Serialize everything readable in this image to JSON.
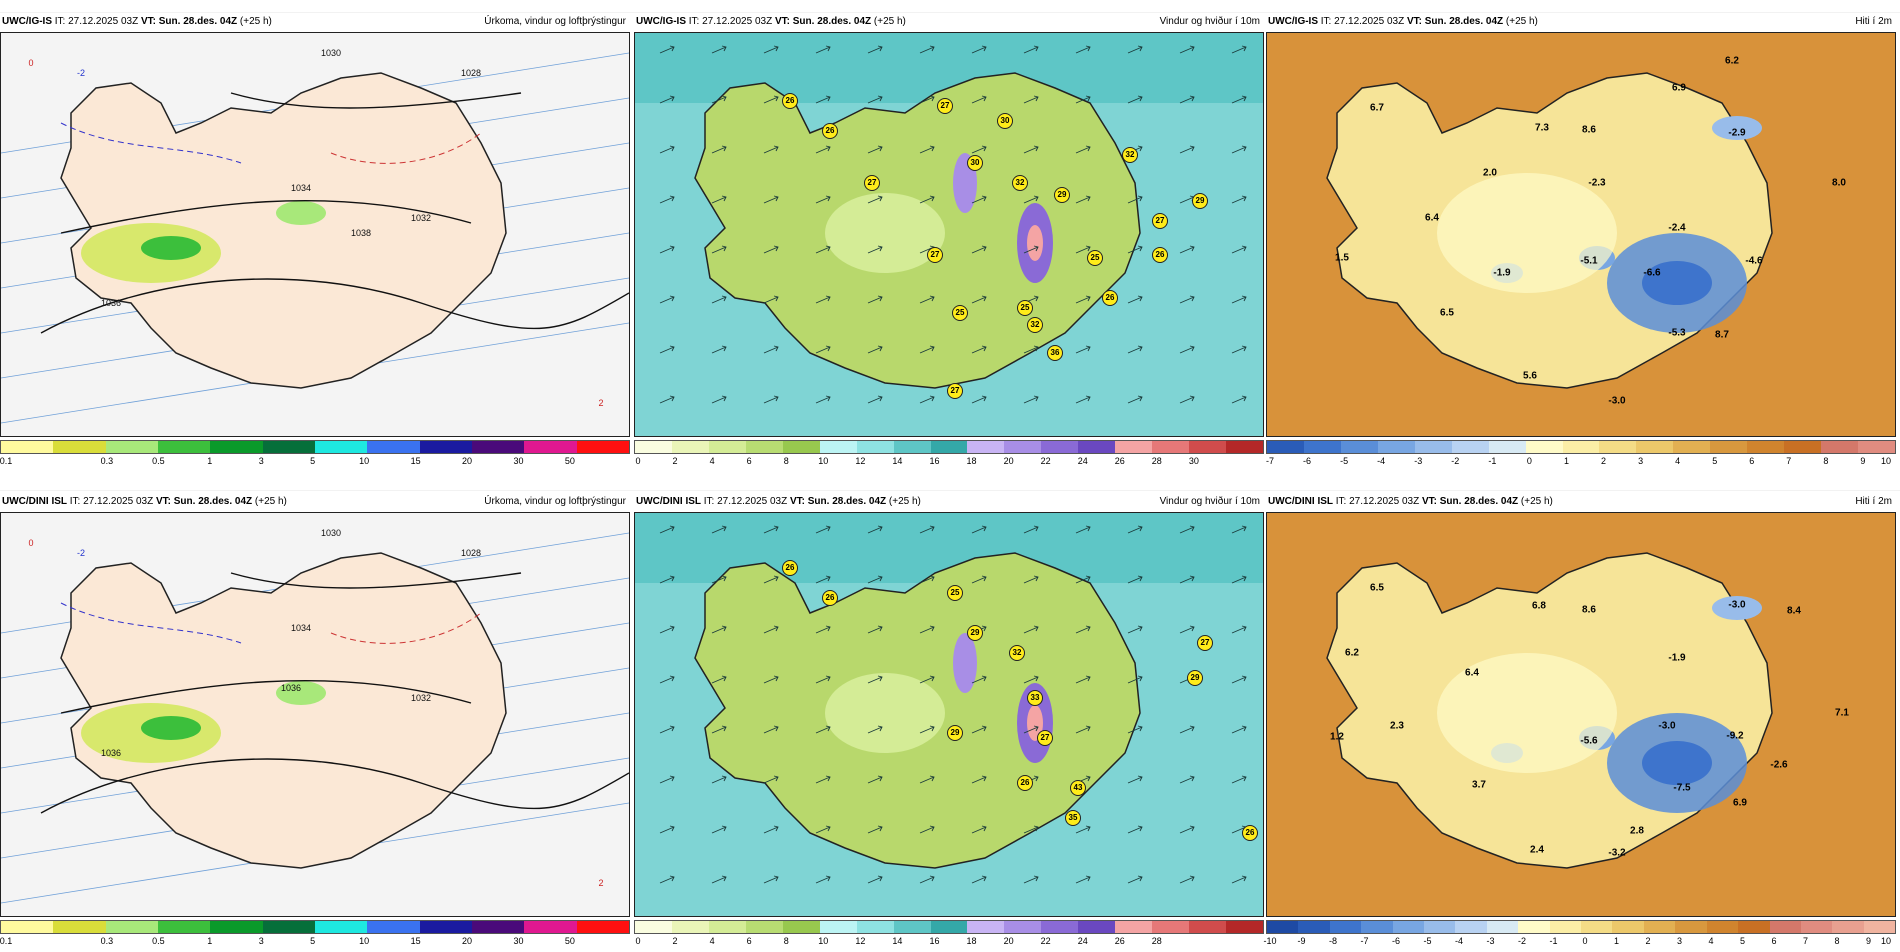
{
  "panels": [
    {
      "id": "igis-precip",
      "model": "UWC/IG-IS",
      "it_label": "IT:",
      "it_value": "27.12.2025 03Z",
      "vt_label": "VT:",
      "vt_value": "Sun. 28.des. 04Z",
      "lead": "(+25 h)",
      "title": "Úrkoma, vindur og loftþrýstingur",
      "legend": {
        "colors": [
          "#fffa9e",
          "#d9dd3a",
          "#a8e87a",
          "#3cbf3c",
          "#0a9a2a",
          "#066f3a",
          "#1ee8e0",
          "#3a72f0",
          "#1a1aa0",
          "#4a0a7a",
          "#e01890",
          "#ff1010"
        ],
        "ticks": [
          "0.1",
          "0.3",
          "0.5",
          "1",
          "3",
          "5",
          "10",
          "15",
          "20",
          "30",
          "50"
        ]
      },
      "labels": [
        "1030",
        "1032",
        "1034",
        "1036",
        "1028",
        "1038",
        "-2",
        "0",
        "2"
      ]
    },
    {
      "id": "igis-wind",
      "model": "UWC/IG-IS",
      "it_label": "IT:",
      "it_value": "27.12.2025 03Z",
      "vt_label": "VT:",
      "vt_value": "Sun. 28.des. 04Z",
      "lead": "(+25 h)",
      "title": "Vindur og hviður í 10m",
      "legend": {
        "colors": [
          "#fafde0",
          "#eaf5b8",
          "#d4ec96",
          "#b8dc72",
          "#98c84e",
          "#bcf4f4",
          "#8ee2e2",
          "#5ec6c6",
          "#34a8a8",
          "#c8b4f4",
          "#a88ee6",
          "#8a6ad6",
          "#6a48c0",
          "#f4a4a4",
          "#e67878",
          "#d04c4c",
          "#b42828"
        ],
        "ticks": [
          "0",
          "2",
          "4",
          "6",
          "8",
          "10",
          "12",
          "14",
          "16",
          "18",
          "20",
          "22",
          "24",
          "26",
          "28",
          "30"
        ]
      },
      "gusts": [
        "26",
        "26",
        "27",
        "30",
        "30",
        "32",
        "27",
        "29",
        "32",
        "27",
        "26",
        "27",
        "29",
        "25",
        "26",
        "25",
        "32",
        "36",
        "27",
        "25"
      ]
    },
    {
      "id": "igis-temp",
      "model": "UWC/IG-IS",
      "it_label": "IT:",
      "it_value": "27.12.2025 03Z",
      "vt_label": "VT:",
      "vt_value": "Sun. 28.des. 04Z",
      "lead": "(+25 h)",
      "title": "Hiti í 2m",
      "legend": {
        "colors": [
          "#2a5cb8",
          "#3e74cc",
          "#5a8ed8",
          "#78a6e2",
          "#98bcea",
          "#b8d2f2",
          "#d8eaf4",
          "#fffbc8",
          "#fbeea6",
          "#f4dc86",
          "#ecc86a",
          "#e2b052",
          "#d8983e",
          "#d0842e",
          "#c87024",
          "#d4786a",
          "#e08c80"
        ],
        "ticks": [
          "-7",
          "-6",
          "-5",
          "-4",
          "-3",
          "-2",
          "-1",
          "0",
          "1",
          "2",
          "3",
          "4",
          "5",
          "6",
          "7",
          "8",
          "9",
          "10"
        ]
      },
      "labels": [
        "6.7",
        "7.3",
        "8.6",
        "6.9",
        "6.2",
        "-2.9",
        "2.0",
        "-2.3",
        "8.0",
        "6.4",
        "-2.4",
        "1.5",
        "-1.9",
        "-5.1",
        "-6.6",
        "-4.6",
        "6.5",
        "-5.3",
        "8.7",
        "5.6",
        "-3.0"
      ]
    },
    {
      "id": "dini-precip",
      "model": "UWC/DINI ISL",
      "it_label": "IT:",
      "it_value": "27.12.2025 03Z",
      "vt_label": "VT:",
      "vt_value": "Sun. 28.des. 04Z",
      "lead": "(+25 h)",
      "title": "Úrkoma, vindur og loftþrýstingur",
      "legend": {
        "colors": [
          "#fffa9e",
          "#d9dd3a",
          "#a8e87a",
          "#3cbf3c",
          "#0a9a2a",
          "#066f3a",
          "#1ee8e0",
          "#3a72f0",
          "#1a1aa0",
          "#4a0a7a",
          "#e01890",
          "#ff1010"
        ],
        "ticks": [
          "0.1",
          "0.3",
          "0.5",
          "1",
          "3",
          "5",
          "10",
          "15",
          "20",
          "30",
          "50"
        ]
      },
      "labels": [
        "1030",
        "1032",
        "1034",
        "1036",
        "1028",
        "1036",
        "-2",
        "0",
        "2"
      ]
    },
    {
      "id": "dini-wind",
      "model": "UWC/DINI ISL",
      "it_label": "IT:",
      "it_value": "27.12.2025 03Z",
      "vt_label": "VT:",
      "vt_value": "Sun. 28.des. 04Z",
      "lead": "(+25 h)",
      "title": "Vindur og hviður í 10m",
      "legend": {
        "colors": [
          "#fafde0",
          "#eaf5b8",
          "#d4ec96",
          "#b8dc72",
          "#98c84e",
          "#bcf4f4",
          "#8ee2e2",
          "#5ec6c6",
          "#34a8a8",
          "#c8b4f4",
          "#a88ee6",
          "#8a6ad6",
          "#6a48c0",
          "#f4a4a4",
          "#e67878",
          "#d04c4c",
          "#b42828"
        ],
        "ticks": [
          "0",
          "2",
          "4",
          "6",
          "8",
          "10",
          "12",
          "14",
          "16",
          "18",
          "20",
          "22",
          "24",
          "26",
          "28"
        ]
      },
      "gusts": [
        "26",
        "26",
        "25",
        "29",
        "32",
        "27",
        "29",
        "33",
        "27",
        "29",
        "26",
        "43",
        "35",
        "26"
      ]
    },
    {
      "id": "dini-temp",
      "model": "UWC/DINI ISL",
      "it_label": "IT:",
      "it_value": "27.12.2025 03Z",
      "vt_label": "VT:",
      "vt_value": "Sun. 28.des. 04Z",
      "lead": "(+25 h)",
      "title": "Hiti í 2m",
      "legend": {
        "colors": [
          "#1e4aa4",
          "#2a5cb8",
          "#3e74cc",
          "#5a8ed8",
          "#78a6e2",
          "#98bcea",
          "#b8d2f2",
          "#d8eaf4",
          "#fffbc8",
          "#fbeea6",
          "#f4dc86",
          "#ecc86a",
          "#e2b052",
          "#d8983e",
          "#d0842e",
          "#c87024",
          "#d4786a",
          "#e08c80",
          "#e8a090",
          "#f0b4a0"
        ],
        "ticks": [
          "-10",
          "-9",
          "-8",
          "-7",
          "-6",
          "-5",
          "-4",
          "-3",
          "-2",
          "-1",
          "0",
          "1",
          "2",
          "3",
          "4",
          "5",
          "6",
          "7",
          "8",
          "9",
          "10"
        ]
      },
      "labels": [
        "6.5",
        "6.8",
        "8.6",
        "-3.0",
        "8.4",
        "6.2",
        "6.4",
        "-1.9",
        "7.1",
        "1.2",
        "2.3",
        "-5.6",
        "-3.0",
        "-9.2",
        "-2.6",
        "3.7",
        "-7.5",
        "6.9",
        "2.8",
        "2.4",
        "-3.2"
      ]
    }
  ]
}
